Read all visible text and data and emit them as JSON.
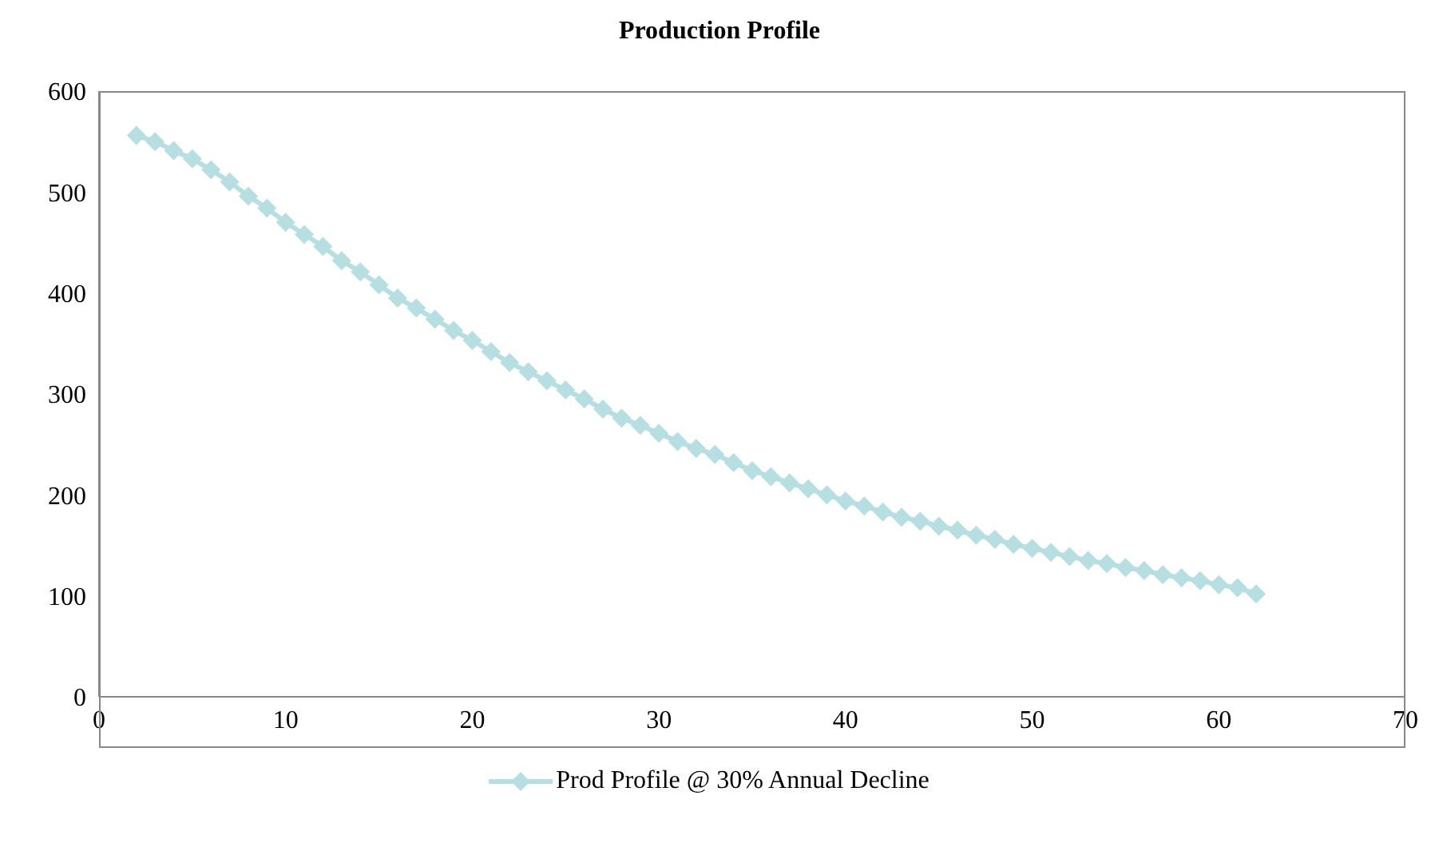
{
  "chart_data": {
    "type": "line",
    "title": "Production Profile",
    "x": [
      2,
      3,
      4,
      5,
      6,
      7,
      8,
      9,
      10,
      11,
      12,
      13,
      14,
      15,
      16,
      17,
      18,
      19,
      20,
      21,
      22,
      23,
      24,
      25,
      26,
      27,
      28,
      29,
      30,
      31,
      32,
      33,
      34,
      35,
      36,
      37,
      38,
      39,
      40,
      41,
      42,
      43,
      44,
      45,
      46,
      47,
      48,
      49,
      50,
      51,
      52,
      53,
      54,
      55,
      56,
      57,
      58,
      59,
      60,
      61,
      62
    ],
    "series": [
      {
        "name": "Prod Profile @ 30% Annual Decline",
        "color": "#b7dfe2",
        "values": [
          556,
          550,
          541,
          533,
          522,
          510,
          496,
          484,
          470,
          458,
          446,
          432,
          421,
          408,
          395,
          385,
          374,
          363,
          353,
          342,
          331,
          322,
          313,
          304,
          295,
          285,
          276,
          269,
          261,
          253,
          246,
          240,
          232,
          224,
          218,
          212,
          206,
          200,
          194,
          189,
          183,
          178,
          174,
          169,
          165,
          160,
          156,
          151,
          147,
          143,
          139,
          135,
          132,
          128,
          125,
          121,
          118,
          115,
          111,
          108,
          102
        ]
      }
    ],
    "xlim": [
      0,
      70
    ],
    "xticks": [
      0,
      10,
      20,
      30,
      40,
      50,
      60,
      70
    ],
    "ylim": [
      0,
      600
    ],
    "yticks": [
      0,
      100,
      200,
      300,
      400,
      500,
      600
    ],
    "grid": false,
    "legend": "bottom",
    "marker": "diamond",
    "line_style": "solid"
  }
}
